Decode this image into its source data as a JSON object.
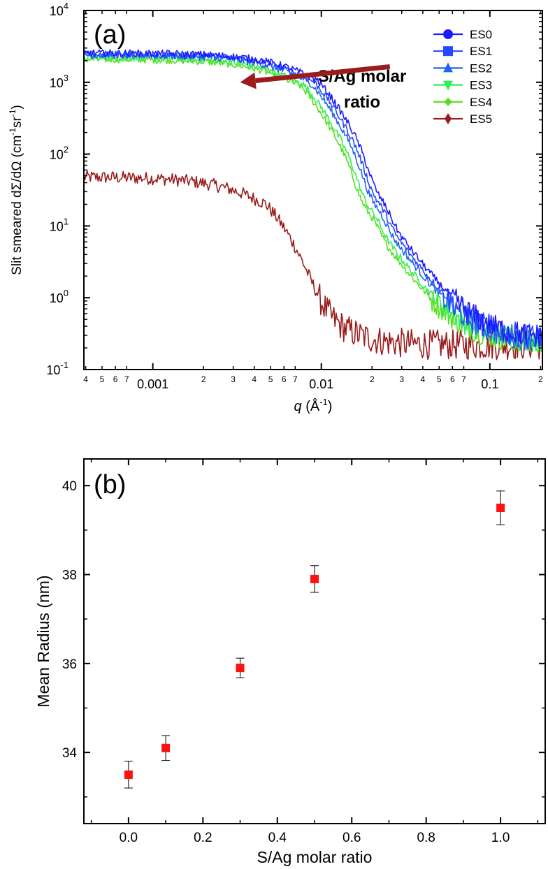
{
  "chart_data": [
    {
      "panel": "(a)",
      "type": "line",
      "xscale": "log",
      "yscale": "log",
      "xlim": [
        0.00039,
        0.205
      ],
      "ylim": [
        0.1,
        10000
      ],
      "xlabel_italic": "q",
      "xlabel_rest": " (Å",
      "xlabel_exp": "-1",
      "xlabel_close": ")",
      "ylabel_main": "Slit smeared dΣ/dΩ (cm",
      "ylabel_exp1": "-1",
      "ylabel_mid": "sr",
      "ylabel_exp2": "-1",
      "ylabel_close": ")",
      "y_ticks": [
        {
          "value": 0.1,
          "base": "10",
          "exp": "-1"
        },
        {
          "value": 1,
          "base": "10",
          "exp": "0"
        },
        {
          "value": 10,
          "base": "10",
          "exp": "1"
        },
        {
          "value": 100,
          "base": "10",
          "exp": "2"
        },
        {
          "value": 1000,
          "base": "10",
          "exp": "3"
        },
        {
          "value": 10000,
          "base": "10",
          "exp": "4"
        }
      ],
      "x_major_ticks": [
        {
          "value": 0.001,
          "label": "0.001"
        },
        {
          "value": 0.01,
          "label": "0.01"
        },
        {
          "value": 0.1,
          "label": "0.1"
        }
      ],
      "x_minor_ticks": [
        {
          "value": 0.0004,
          "label": "4"
        },
        {
          "value": 0.0005,
          "label": "5"
        },
        {
          "value": 0.0006,
          "label": "6"
        },
        {
          "value": 0.0007,
          "label": "7"
        },
        {
          "value": 0.002,
          "label": "2"
        },
        {
          "value": 0.003,
          "label": "3"
        },
        {
          "value": 0.004,
          "label": "4"
        },
        {
          "value": 0.005,
          "label": "5"
        },
        {
          "value": 0.006,
          "label": "6"
        },
        {
          "value": 0.007,
          "label": "7"
        },
        {
          "value": 0.02,
          "label": "2"
        },
        {
          "value": 0.03,
          "label": "3"
        },
        {
          "value": 0.04,
          "label": "4"
        },
        {
          "value": 0.05,
          "label": "5"
        },
        {
          "value": 0.06,
          "label": "6"
        },
        {
          "value": 0.07,
          "label": "7"
        },
        {
          "value": 0.2,
          "label": "2"
        }
      ],
      "annotation": {
        "line1": "S/Ag molar",
        "line2": "ratio",
        "arrow_from_q": 0.0255,
        "arrow_to_q": 0.0033,
        "arrow_from_i": 1650,
        "arrow_to_i": 1000,
        "arrow_color": "#9b1c1c"
      },
      "series": [
        {
          "name": "ES0",
          "marker": "circle",
          "color": "#1a1aff",
          "plateau": 2550,
          "rg_q": 0.0118,
          "osc_q": 0.0155,
          "tail": 0.28
        },
        {
          "name": "ES1",
          "marker": "square",
          "color": "#2448ff",
          "plateau": 2450,
          "rg_q": 0.0112,
          "osc_q": 0.015,
          "tail": 0.27
        },
        {
          "name": "ES2",
          "marker": "triangle-up",
          "color": "#2266ee",
          "plateau": 2400,
          "rg_q": 0.0106,
          "osc_q": 0.0145,
          "tail": 0.26
        },
        {
          "name": "ES3",
          "marker": "triangle-down",
          "color": "#33ee55",
          "plateau": 2200,
          "rg_q": 0.0098,
          "osc_q": 0.0135,
          "tail": 0.25
        },
        {
          "name": "ES4",
          "marker": "diamond-small",
          "color": "#55e01a",
          "plateau": 2100,
          "rg_q": 0.0094,
          "osc_q": 0.013,
          "tail": 0.24
        },
        {
          "name": "ES5",
          "marker": "diamond",
          "color": "#9b1c1c",
          "plateau": 48,
          "rg_q": 0.0058,
          "osc_q": 0.0,
          "tail": 0.22
        }
      ]
    },
    {
      "panel": "(b)",
      "type": "scatter",
      "xlabel": "S/Ag molar ratio",
      "ylabel": "Mean Radius (nm)",
      "xlim": [
        -0.12,
        1.12
      ],
      "ylim": [
        32.4,
        40.6
      ],
      "x_ticks": [
        {
          "value": 0.0,
          "label": "0.0"
        },
        {
          "value": 0.2,
          "label": "0.2"
        },
        {
          "value": 0.4,
          "label": "0.4"
        },
        {
          "value": 0.6,
          "label": "0.6"
        },
        {
          "value": 0.8,
          "label": "0.8"
        },
        {
          "value": 1.0,
          "label": "1.0"
        }
      ],
      "y_ticks": [
        {
          "value": 34,
          "label": "34"
        },
        {
          "value": 36,
          "label": "36"
        },
        {
          "value": 38,
          "label": "38"
        },
        {
          "value": 40,
          "label": "40"
        }
      ],
      "marker_color": "#ff1111",
      "points": [
        {
          "x": 0.0,
          "y": 33.5,
          "err": 0.3
        },
        {
          "x": 0.1,
          "y": 34.1,
          "err": 0.28
        },
        {
          "x": 0.3,
          "y": 35.9,
          "err": 0.22
        },
        {
          "x": 0.5,
          "y": 37.9,
          "err": 0.3
        },
        {
          "x": 1.0,
          "y": 39.5,
          "err": 0.38
        }
      ]
    }
  ]
}
